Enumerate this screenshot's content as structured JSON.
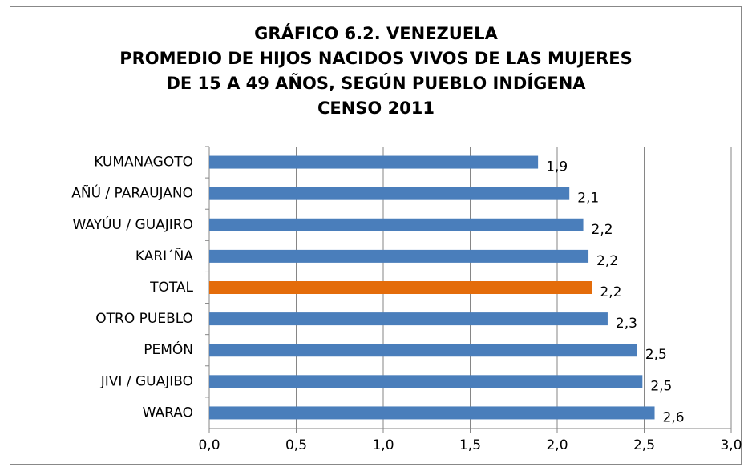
{
  "chart_data": {
    "type": "bar",
    "orientation": "horizontal",
    "title": [
      "GRÁFICO 6.2. VENEZUELA",
      "PROMEDIO DE HIJOS NACIDOS VIVOS DE LAS MUJERES",
      "DE 15 A 49 AÑOS, SEGÚN PUEBLO INDÍGENA",
      "CENSO 2011"
    ],
    "categories": [
      "KUMANAGOTO",
      "AÑÚ / PARAUJANO",
      "WAYÚU / GUAJIRO",
      "KARI´ÑA",
      "TOTAL",
      "OTRO PUEBLO",
      "PEMÓN",
      "JIVI / GUAJIBO",
      "WARAO"
    ],
    "values": [
      1.89,
      2.07,
      2.15,
      2.18,
      2.2,
      2.29,
      2.46,
      2.49,
      2.56
    ],
    "value_labels": [
      "1,9",
      "2,1",
      "2,2",
      "2,2",
      "2,2",
      "2,3",
      "2,5",
      "2,5",
      "2,6"
    ],
    "colors": [
      "#4a7ebb",
      "#4a7ebb",
      "#4a7ebb",
      "#4a7ebb",
      "#e46c0a",
      "#4a7ebb",
      "#4a7ebb",
      "#4a7ebb",
      "#4a7ebb"
    ],
    "xlim": [
      0,
      3
    ],
    "xticks": [
      {
        "value": 0,
        "label": "0,0"
      },
      {
        "value": 0.5,
        "label": "0,5"
      },
      {
        "value": 1,
        "label": "1,0"
      },
      {
        "value": 1.5,
        "label": "1,5"
      },
      {
        "value": 2,
        "label": "2,0"
      },
      {
        "value": 2.5,
        "label": "2,5"
      },
      {
        "value": 3,
        "label": "3,0"
      }
    ],
    "grid": true
  }
}
